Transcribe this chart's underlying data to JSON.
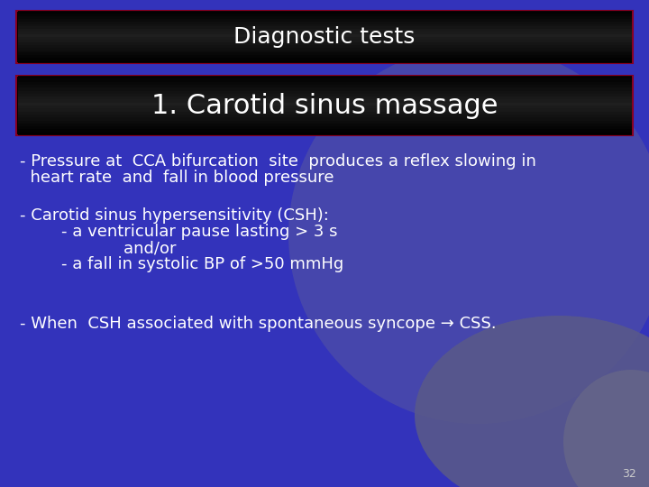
{
  "title": "Diagnostic tests",
  "subtitle": "1. Carotid sinus massage",
  "bg_color": "#3333bb",
  "title_bar_color": "#000000",
  "title_text_color": "#ffffff",
  "subtitle_text_color": "#ffffff",
  "border_color": "#880022",
  "text_color": "#ffffff",
  "body_line1": "- Pressure at  CCA bifurcation  site  produces a reflex slowing in",
  "body_line1b": "  heart rate  and  fall in blood pressure",
  "body_line2": "- Carotid sinus hypersensitivity (CSH):",
  "body_line2b": "        - a ventricular pause lasting > 3 s",
  "body_line2c": "                    and/or",
  "body_line2d": "        - a fall in systolic BP of >50 mmHg",
  "body_line3": "- When  CSH associated with spontaneous syncope → CSS.",
  "page_number": "32",
  "title_fontsize": 18,
  "subtitle_fontsize": 22,
  "body_fontsize": 13
}
